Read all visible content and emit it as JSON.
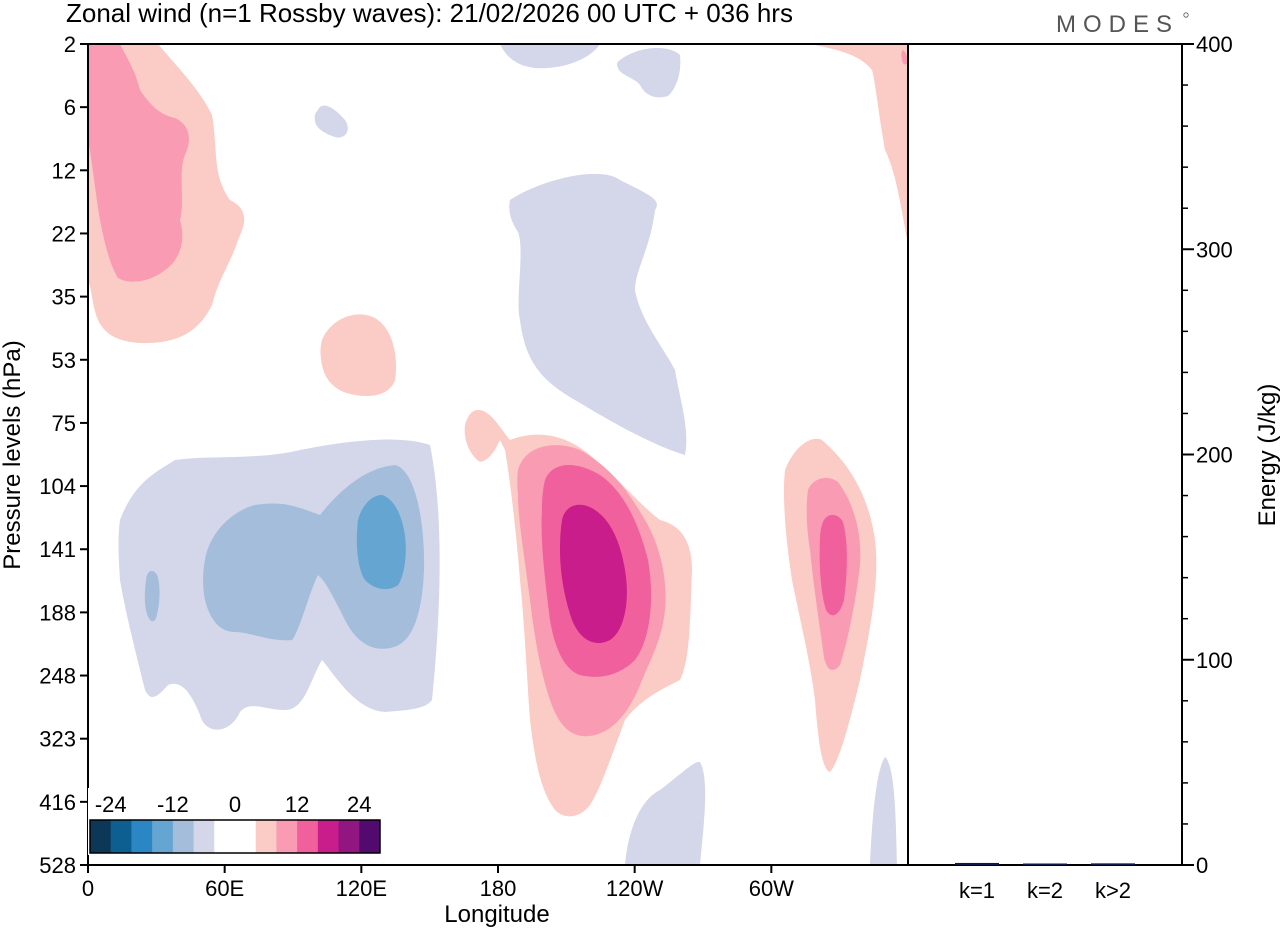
{
  "chart_data": [
    {
      "type": "contour",
      "title": "Zonal wind (n=1 Rossby waves):  21/02/2026  00 UTC  + 036 hrs",
      "xlabel": "Longitude",
      "ylabel": "Pressure levels (hPa)",
      "x_ticks": [
        "0",
        "60E",
        "120E",
        "180",
        "120W",
        "60W"
      ],
      "x_tick_values": [
        0,
        60,
        120,
        180,
        240,
        300
      ],
      "xlim": [
        0,
        360
      ],
      "y_ticks": [
        "2",
        "6",
        "12",
        "22",
        "35",
        "53",
        "75",
        "104",
        "141",
        "188",
        "248",
        "323",
        "416",
        "528"
      ],
      "y_scale": "level index (top to bottom)",
      "colorbar": {
        "tick_labels": [
          "-24",
          "-12",
          "0",
          "12",
          "24"
        ],
        "tick_values": [
          -24,
          -12,
          0,
          12,
          24
        ],
        "levels": [
          -28,
          -24,
          -20,
          -16,
          -12,
          -8,
          -4,
          0,
          4,
          8,
          12,
          16,
          20,
          24,
          28
        ],
        "colors": [
          "#0c3756",
          "#0d5f92",
          "#2a87c4",
          "#64a5d1",
          "#a3bddb",
          "#d4d6e9",
          "#ffffff",
          "#ffffff",
          "#fbcbc5",
          "#f89bb3",
          "#f0609c",
          "#c81d8a",
          "#921682",
          "#520a6e"
        ]
      },
      "features": [
        {
          "label": "positive core",
          "lon": 225,
          "level": 141,
          "max_value": 18
        },
        {
          "label": "positive core",
          "lon": 325,
          "level": 141,
          "max_value": 14
        },
        {
          "label": "positive region",
          "lon": 20,
          "level": 12,
          "max_value": 9
        },
        {
          "label": "negative core",
          "lon": 127,
          "level": 141,
          "min_value": -13
        },
        {
          "label": "negative region",
          "lon": 85,
          "level": 170,
          "min_value": -9
        },
        {
          "label": "negative region",
          "lon": 230,
          "level": 35,
          "min_value": -5
        }
      ]
    },
    {
      "type": "bar",
      "ylabel": "Energy (J/kg)",
      "categories": [
        "k=1",
        "k=2",
        "k>2"
      ],
      "values": [
        1.0,
        0.5,
        0.8
      ],
      "ylim": [
        0,
        400
      ],
      "y_ticks": [
        "0",
        "100",
        "200",
        "300",
        "400"
      ],
      "y_tick_values": [
        0,
        100,
        200,
        300,
        400
      ],
      "bar_color": "#0d1a4a"
    }
  ],
  "logo": "MODES"
}
